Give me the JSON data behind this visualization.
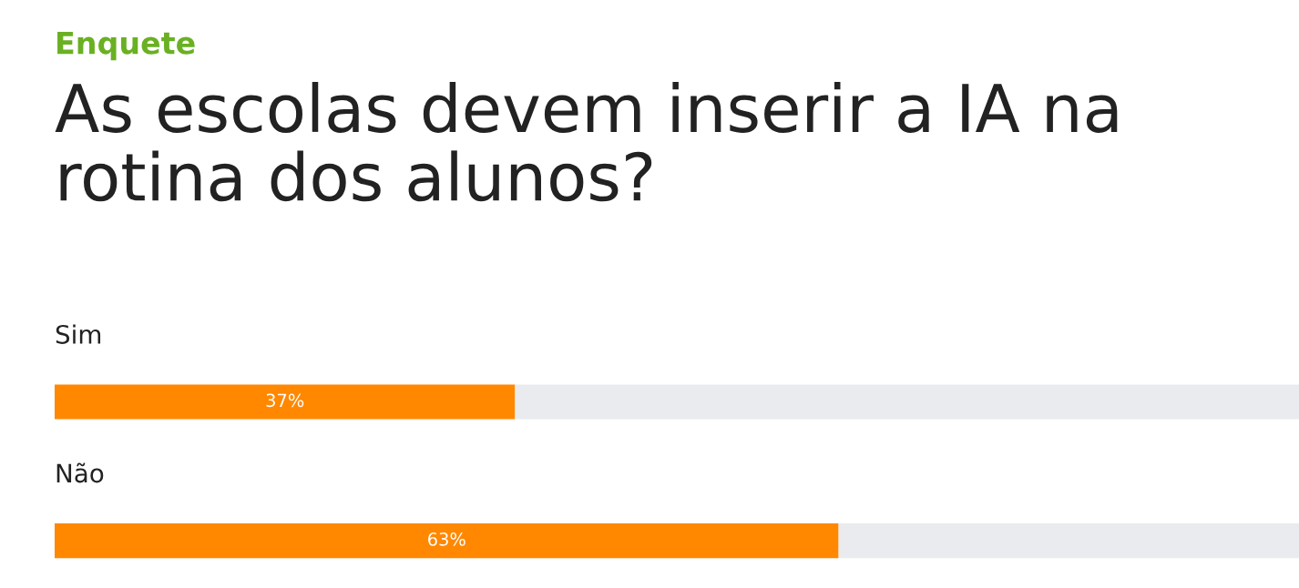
{
  "chart_data": {
    "type": "bar",
    "orientation": "horizontal",
    "stacked": true,
    "subtitle": "Enquete",
    "title": "As escolas devem inserir a IA na rotina dos alunos?",
    "categories": [
      "Sim",
      "Não"
    ],
    "series": [
      {
        "color": "#ff8800",
        "values": [
          37,
          63
        ],
        "value_labels": [
          "37%",
          "63%"
        ]
      },
      {
        "color": "#e9ebee",
        "values": [
          63,
          37
        ]
      }
    ],
    "xlim": [
      0,
      100
    ]
  }
}
